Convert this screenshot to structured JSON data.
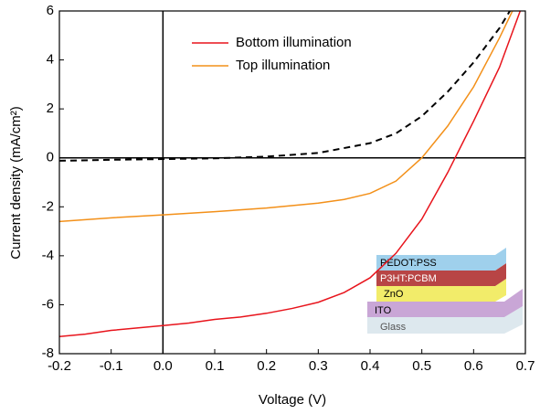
{
  "chart_data": {
    "type": "line",
    "xlabel": "Voltage (V)",
    "ylabel": "Current density (mA/cm²)",
    "xlim": [
      -0.2,
      0.7
    ],
    "xticks": [
      -0.2,
      -0.1,
      {
        "value": 0,
        "label": "0.0"
      },
      0.1,
      0.2,
      0.3,
      0.4,
      0.5,
      0.6,
      0.7
    ],
    "ylim": [
      -8,
      6
    ],
    "yticks": [
      -8,
      -6,
      -4,
      -2,
      0,
      2,
      4,
      6
    ],
    "legend": "upper center",
    "series": [
      {
        "name": "Bottom illumination",
        "color": "#e8141c",
        "x": [
          -0.2,
          -0.15,
          -0.1,
          -0.05,
          0,
          0.05,
          0.1,
          0.15,
          0.2,
          0.25,
          0.3,
          0.35,
          0.4,
          0.45,
          0.5,
          0.55,
          0.6,
          0.65,
          0.69
        ],
        "values": [
          -7.3,
          -7.2,
          -7.05,
          -6.95,
          -6.85,
          -6.75,
          -6.6,
          -6.5,
          -6.35,
          -6.15,
          -5.9,
          -5.5,
          -4.9,
          -3.9,
          -2.5,
          -0.6,
          1.5,
          3.7,
          6
        ]
      },
      {
        "name": "Top illumination",
        "color": "#f39019",
        "x": [
          -0.2,
          -0.1,
          0,
          0.1,
          0.2,
          0.3,
          0.35,
          0.4,
          0.45,
          0.5,
          0.55,
          0.6,
          0.65,
          0.675
        ],
        "values": [
          -2.6,
          -2.45,
          -2.33,
          -2.2,
          -2.05,
          -1.85,
          -1.7,
          -1.45,
          -0.95,
          0,
          1.3,
          2.9,
          4.9,
          6
        ]
      },
      {
        "color": "#000000",
        "dashed": true,
        "x": [
          -0.2,
          -0.1,
          0,
          0.1,
          0.2,
          0.3,
          0.4,
          0.45,
          0.5,
          0.55,
          0.6,
          0.65,
          0.67
        ],
        "values": [
          -0.12,
          -0.08,
          -0.05,
          -0.02,
          0.05,
          0.2,
          0.6,
          1.0,
          1.7,
          2.7,
          3.9,
          5.3,
          6
        ]
      }
    ],
    "inset": {
      "layers": [
        "PEDOT:PSS",
        "P3HT:PCBM",
        "ZnO",
        "ITO",
        "Glass"
      ]
    }
  }
}
